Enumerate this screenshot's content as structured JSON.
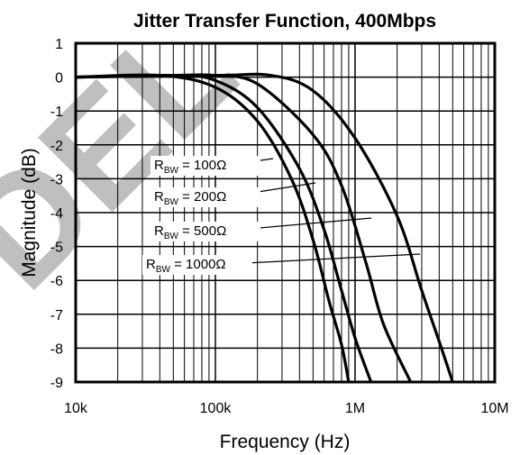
{
  "chart_data": {
    "type": "line",
    "title": "Jitter Transfer Function, 400Mbps",
    "xlabel": "Frequency (Hz)",
    "ylabel": "Magnitude (dB)",
    "x_scale": "log",
    "xlim": [
      10000,
      10000000
    ],
    "ylim": [
      -9,
      1
    ],
    "x_ticks": [
      10000,
      100000,
      1000000,
      10000000
    ],
    "x_tick_labels": [
      "10k",
      "100k",
      "1M",
      "10M"
    ],
    "y_ticks": [
      1,
      0,
      -1,
      -2,
      -3,
      -4,
      -5,
      -6,
      -7,
      -8,
      -9
    ],
    "y_tick_labels": [
      "1",
      "0",
      "-1",
      "-2",
      "-3",
      "-4",
      "-5",
      "-6",
      "-7",
      "-8",
      "-9"
    ],
    "grid": true,
    "series": [
      {
        "name": "RBW = 100Ω",
        "label_main": "R",
        "label_sub": "BW",
        "label_value": " = 100Ω",
        "points": [
          [
            10000,
            0
          ],
          [
            100000,
            0.05
          ],
          [
            250000,
            0.05
          ],
          [
            500000,
            -0.4
          ],
          [
            1000000,
            -1.8
          ],
          [
            2000000,
            -4.1
          ],
          [
            3000000,
            -6.3
          ],
          [
            4000000,
            -7.8
          ],
          [
            5000000,
            -9
          ]
        ]
      },
      {
        "name": "RBW = 200Ω",
        "label_main": "R",
        "label_sub": "BW",
        "label_value": " = 200Ω",
        "points": [
          [
            10000,
            0
          ],
          [
            50000,
            0.05
          ],
          [
            100000,
            0.05
          ],
          [
            200000,
            -0.2
          ],
          [
            500000,
            -1.7
          ],
          [
            800000,
            -3.2
          ],
          [
            1200000,
            -5.5
          ],
          [
            1600000,
            -7.3
          ],
          [
            2500000,
            -9
          ]
        ]
      },
      {
        "name": "RBW = 500Ω",
        "label_main": "R",
        "label_sub": "BW",
        "label_value": " = 500Ω",
        "points": [
          [
            10000,
            0
          ],
          [
            50000,
            0.05
          ],
          [
            100000,
            -0.1
          ],
          [
            200000,
            -0.9
          ],
          [
            400000,
            -2.7
          ],
          [
            600000,
            -4.5
          ],
          [
            800000,
            -6.3
          ],
          [
            1000000,
            -7.7
          ],
          [
            1300000,
            -9
          ]
        ]
      },
      {
        "name": "RBW = 1000Ω",
        "label_main": "R",
        "label_sub": "BW",
        "label_value": " = 1000Ω",
        "points": [
          [
            10000,
            0
          ],
          [
            40000,
            0.05
          ],
          [
            100000,
            -0.3
          ],
          [
            200000,
            -1.3
          ],
          [
            350000,
            -3.0
          ],
          [
            500000,
            -4.8
          ],
          [
            650000,
            -6.6
          ],
          [
            800000,
            -7.9
          ],
          [
            900000,
            -9
          ]
        ]
      }
    ]
  },
  "watermark": "DEL"
}
